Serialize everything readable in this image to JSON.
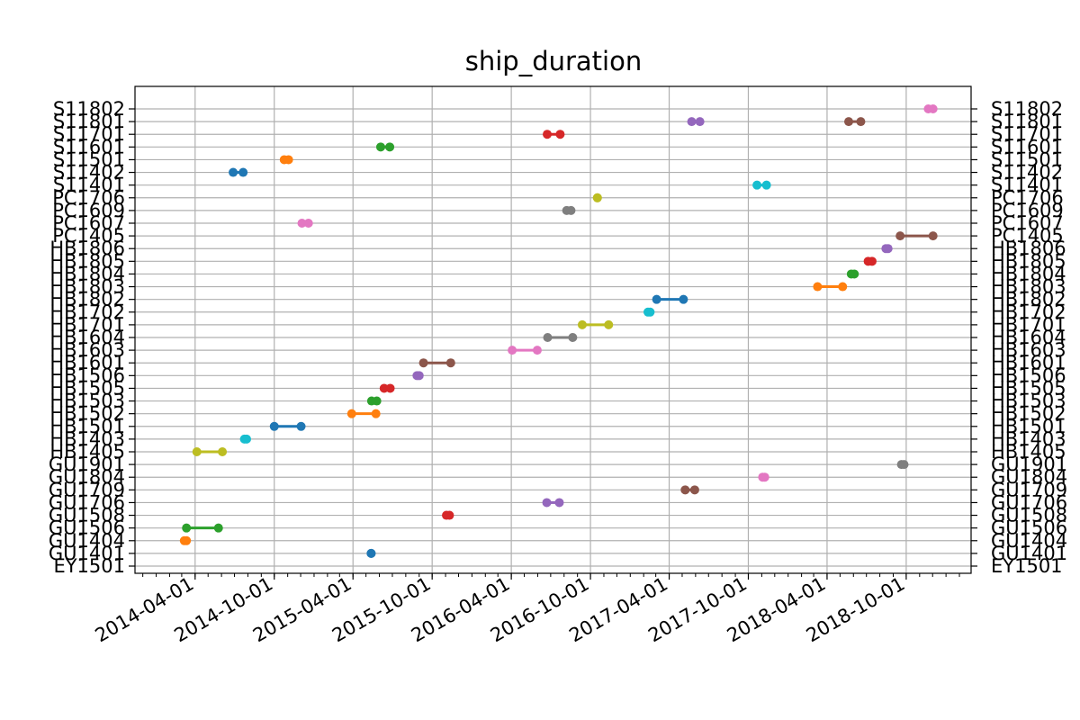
{
  "chart_data": {
    "type": "line",
    "title": "ship_duration",
    "xlabel": "",
    "ylabel": "",
    "grid": true,
    "x_tick_labels": [
      "2014-04-01",
      "2014-10-01",
      "2015-04-01",
      "2015-10-01",
      "2016-04-01",
      "2016-10-01",
      "2017-04-01",
      "2017-10-01",
      "2018-04-01",
      "2018-10-01"
    ],
    "xlim": [
      "2013-11-13",
      "2019-02-28"
    ],
    "categories": [
      "EY1501",
      "GU1401",
      "GU1404",
      "GU1506",
      "GU1508",
      "GU1706",
      "GU1709",
      "GU1804",
      "GU1901",
      "HB1405",
      "HB1403",
      "HB1501",
      "HB1502",
      "HB1503",
      "HB1505",
      "HB1506",
      "HB1601",
      "HB1603",
      "HB1604",
      "HB1701",
      "HB1702",
      "HB1802",
      "HB1803",
      "HB1804",
      "HB1805",
      "HB1806",
      "PC1405",
      "PC1607",
      "PC1609",
      "PC1706",
      "S11401",
      "S11402",
      "S11501",
      "S11601",
      "S11701",
      "S11801",
      "S11802"
    ],
    "series": [
      {
        "category": "GU1401",
        "color": "#1f77b4",
        "start": "2015-05-13",
        "end": "2015-05-13"
      },
      {
        "category": "GU1404",
        "color": "#ff7f0e",
        "start": "2014-03-07",
        "end": "2014-03-12"
      },
      {
        "category": "GU1506",
        "color": "#2ca02c",
        "start": "2014-03-12",
        "end": "2014-05-25"
      },
      {
        "category": "GU1508",
        "color": "#d62728",
        "start": "2015-11-03",
        "end": "2015-11-10"
      },
      {
        "category": "GU1706",
        "color": "#9467bd",
        "start": "2016-06-22",
        "end": "2016-07-21"
      },
      {
        "category": "GU1709",
        "color": "#8c564b",
        "start": "2017-05-08",
        "end": "2017-05-30"
      },
      {
        "category": "GU1804",
        "color": "#e377c2",
        "start": "2017-11-03",
        "end": "2017-11-08"
      },
      {
        "category": "GU1901",
        "color": "#7f7f7f",
        "start": "2018-09-20",
        "end": "2018-09-26"
      },
      {
        "category": "HB1405",
        "color": "#bcbd22",
        "start": "2014-04-05",
        "end": "2014-06-03"
      },
      {
        "category": "HB1403",
        "color": "#17becf",
        "start": "2014-07-24",
        "end": "2014-07-29"
      },
      {
        "category": "HB1501",
        "color": "#1f77b4",
        "start": "2014-10-01",
        "end": "2014-12-02"
      },
      {
        "category": "HB1502",
        "color": "#ff7f0e",
        "start": "2015-03-29",
        "end": "2015-05-24"
      },
      {
        "category": "HB1503",
        "color": "#2ca02c",
        "start": "2015-05-14",
        "end": "2015-05-26"
      },
      {
        "category": "HB1505",
        "color": "#d62728",
        "start": "2015-06-12",
        "end": "2015-06-26"
      },
      {
        "category": "HB1506",
        "color": "#9467bd",
        "start": "2015-08-27",
        "end": "2015-09-01"
      },
      {
        "category": "HB1601",
        "color": "#8c564b",
        "start": "2015-09-11",
        "end": "2015-11-13"
      },
      {
        "category": "HB1603",
        "color": "#e377c2",
        "start": "2016-04-03",
        "end": "2016-05-31"
      },
      {
        "category": "HB1604",
        "color": "#7f7f7f",
        "start": "2016-06-24",
        "end": "2016-08-21"
      },
      {
        "category": "HB1701",
        "color": "#bcbd22",
        "start": "2016-09-12",
        "end": "2016-11-12"
      },
      {
        "category": "HB1702",
        "color": "#17becf",
        "start": "2017-02-11",
        "end": "2017-02-16"
      },
      {
        "category": "HB1802",
        "color": "#1f77b4",
        "start": "2017-03-03",
        "end": "2017-05-04"
      },
      {
        "category": "HB1803",
        "color": "#ff7f0e",
        "start": "2018-03-10",
        "end": "2018-05-07"
      },
      {
        "category": "HB1804",
        "color": "#2ca02c",
        "start": "2018-05-27",
        "end": "2018-06-03"
      },
      {
        "category": "HB1805",
        "color": "#d62728",
        "start": "2018-07-05",
        "end": "2018-07-14"
      },
      {
        "category": "HB1806",
        "color": "#9467bd",
        "start": "2018-08-15",
        "end": "2018-08-20"
      },
      {
        "category": "PC1405",
        "color": "#8c564b",
        "start": "2018-09-17",
        "end": "2018-12-02"
      },
      {
        "category": "PC1607",
        "color": "#e377c2",
        "start": "2014-12-04",
        "end": "2014-12-19"
      },
      {
        "category": "PC1609",
        "color": "#7f7f7f",
        "start": "2016-08-07",
        "end": "2016-08-17"
      },
      {
        "category": "PC1706",
        "color": "#bcbd22",
        "start": "2016-10-17",
        "end": "2016-10-17"
      },
      {
        "category": "S11401",
        "color": "#17becf",
        "start": "2017-10-21",
        "end": "2017-11-12"
      },
      {
        "category": "S11402",
        "color": "#1f77b4",
        "start": "2014-06-28",
        "end": "2014-07-21"
      },
      {
        "category": "S11501",
        "color": "#ff7f0e",
        "start": "2014-10-24",
        "end": "2014-11-03"
      },
      {
        "category": "S11601",
        "color": "#2ca02c",
        "start": "2015-06-04",
        "end": "2015-06-25"
      },
      {
        "category": "S11701",
        "color": "#d62728",
        "start": "2016-06-23",
        "end": "2016-07-23"
      },
      {
        "category": "S11801",
        "color": "#9467bd",
        "start": "2017-05-23",
        "end": "2017-06-11"
      },
      {
        "category": "S11801",
        "color": "#8c564b",
        "start": "2018-05-21",
        "end": "2018-06-18"
      },
      {
        "category": "S11802",
        "color": "#e377c2",
        "start": "2018-11-21",
        "end": "2018-12-02"
      }
    ]
  }
}
